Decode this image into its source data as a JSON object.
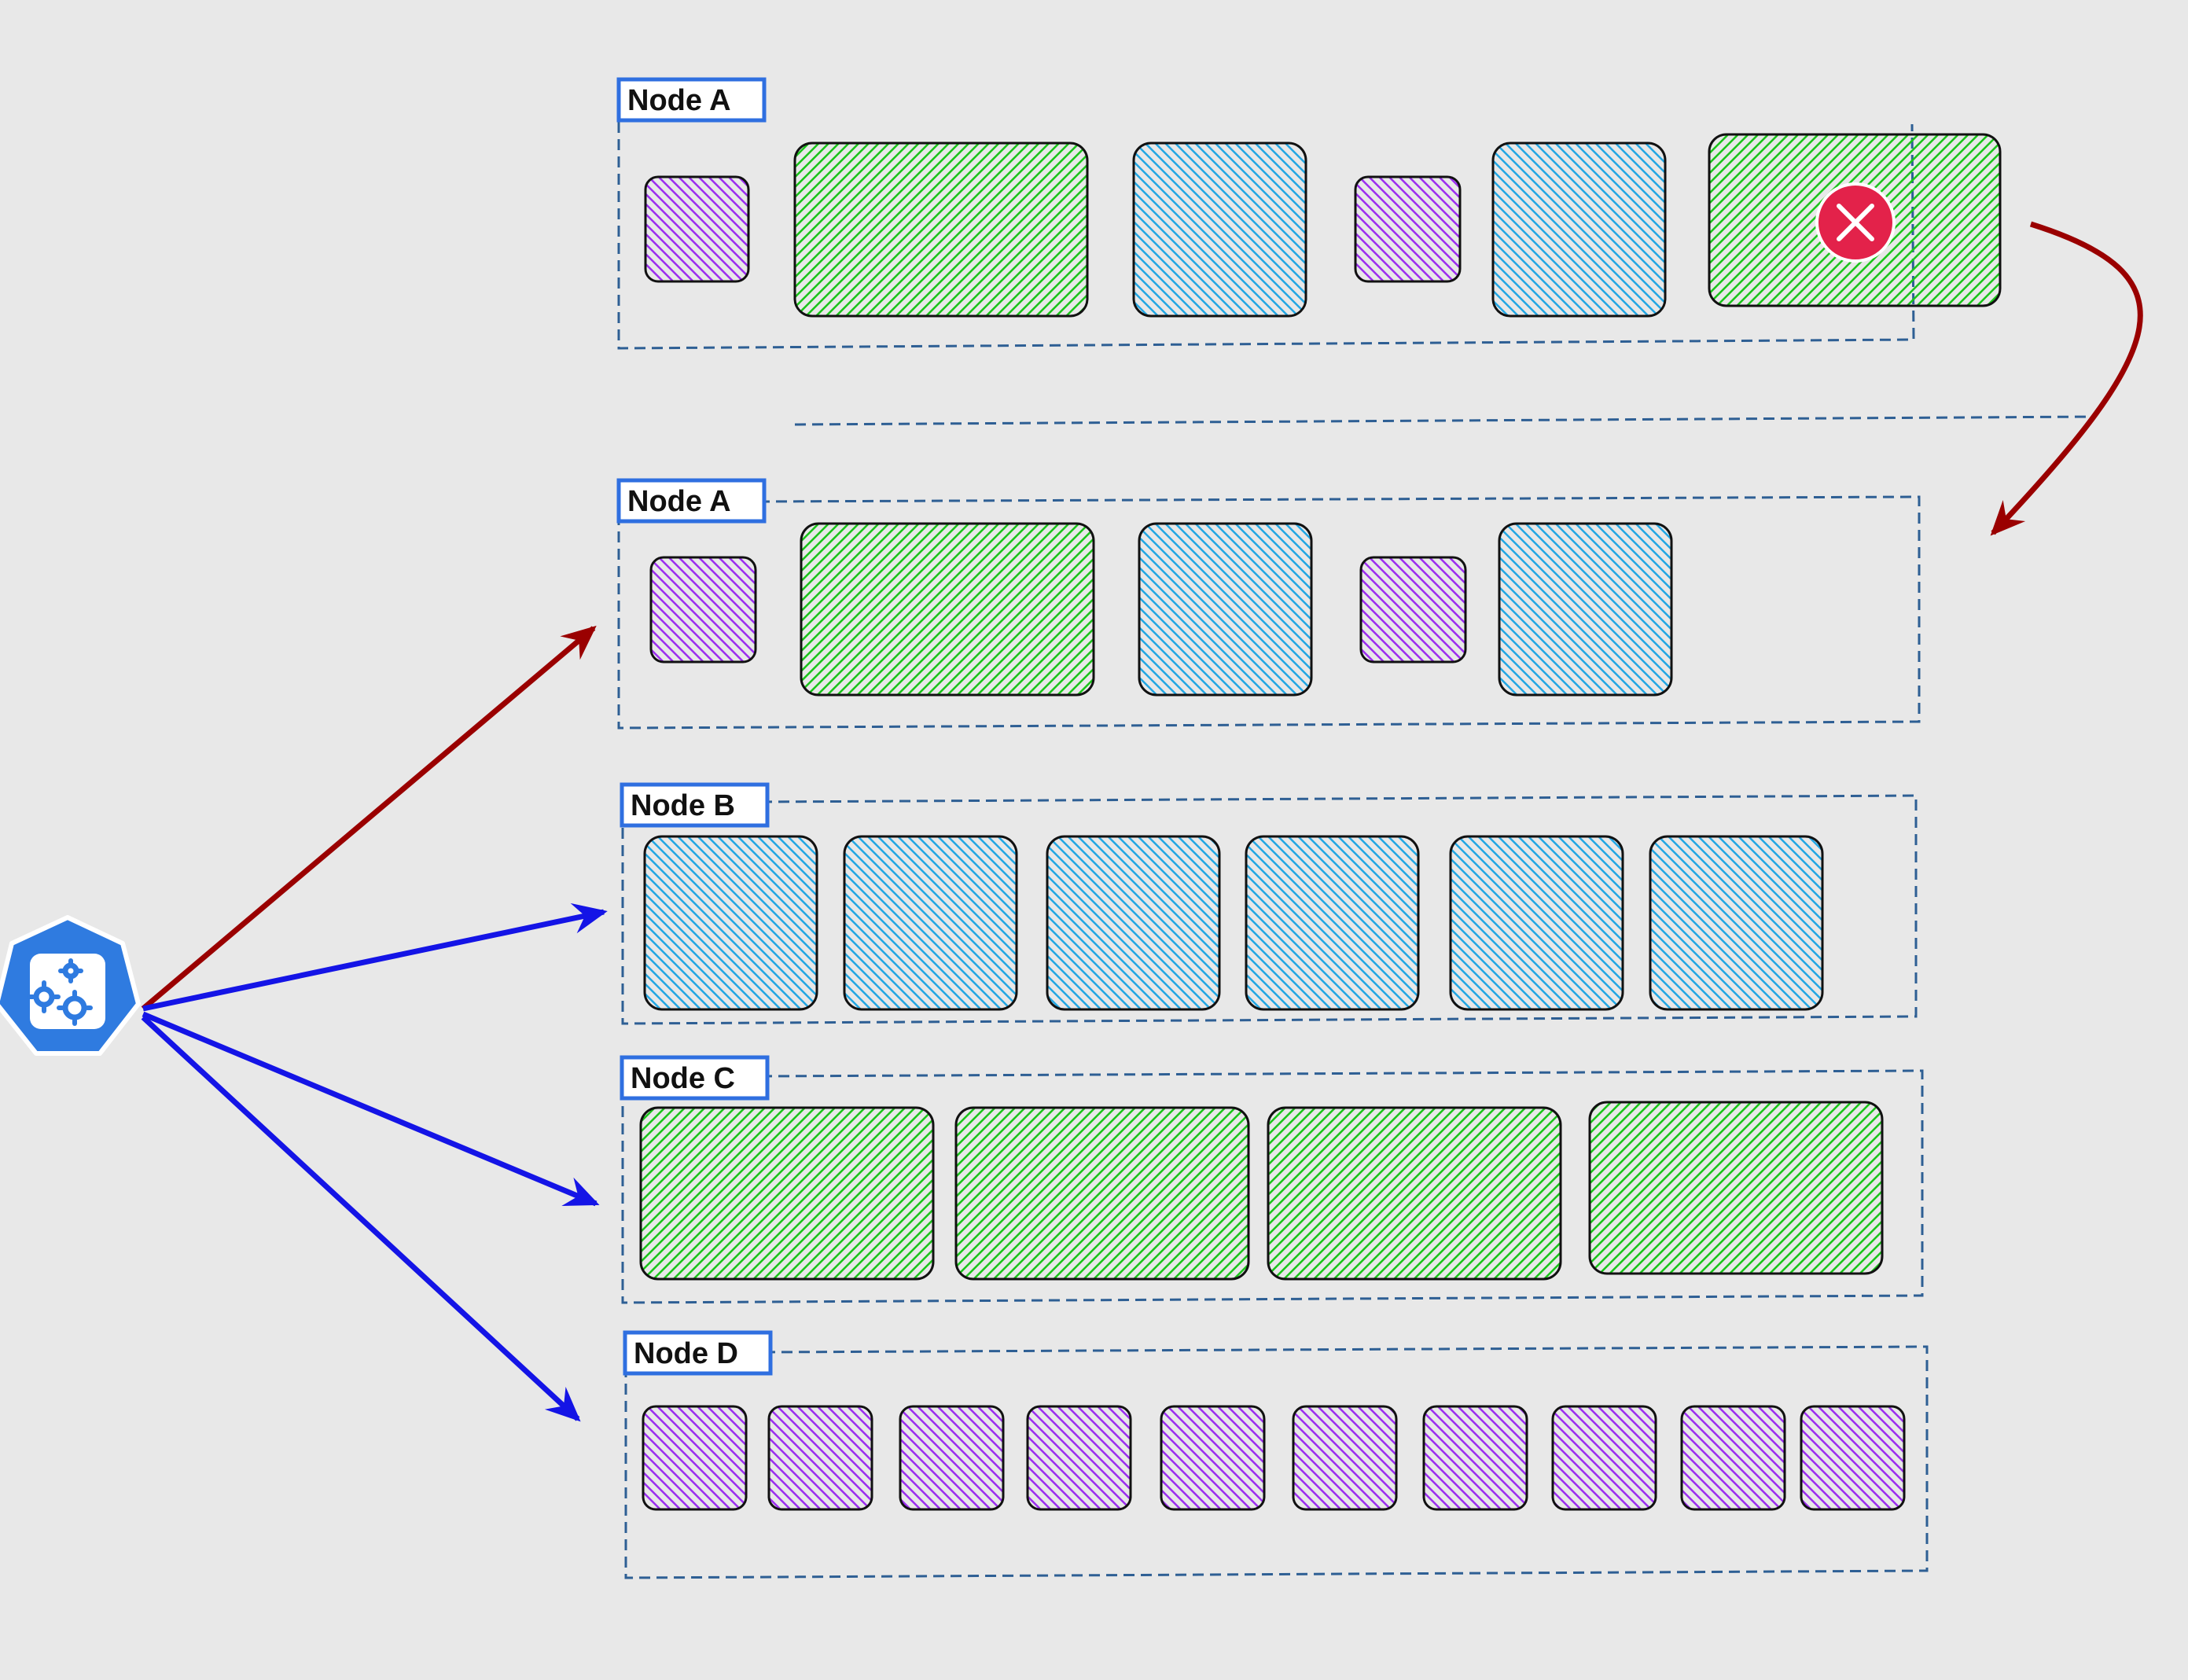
{
  "colors": {
    "background": "#e8e8e8",
    "frame_border": "#2e5f94",
    "label_border": "#2f6fe0",
    "green_pod": "#19c419",
    "blue_pod": "#22a6e3",
    "purple_pod": "#9b2df0",
    "red_arrow": "#9a0000",
    "blue_arrow": "#1414e6",
    "error_badge": "#e3224a",
    "scheduler_icon": "#2f7be0"
  },
  "scheduler": {
    "icon": "kubernetes-scheduler-gears-icon"
  },
  "before_state": {
    "node": {
      "label": "Node A",
      "pods": [
        "purple-small",
        "green-large",
        "blue-medium",
        "purple-small",
        "blue-medium",
        "green-large"
      ],
      "failed_pod_index": 5
    },
    "error_icon": "error-x-icon"
  },
  "after_state": {
    "nodes": [
      {
        "label": "Node A",
        "pods": [
          "purple-small",
          "green-large",
          "blue-medium",
          "purple-small",
          "blue-medium"
        ],
        "arrow": "red"
      },
      {
        "label": "Node B",
        "pods": [
          "blue-medium",
          "blue-medium",
          "blue-medium",
          "blue-medium",
          "blue-medium",
          "blue-medium"
        ],
        "arrow": "blue"
      },
      {
        "label": "Node C",
        "pods": [
          "green-large",
          "green-large",
          "green-large",
          "green-large"
        ],
        "arrow": "blue"
      },
      {
        "label": "Node D",
        "pods": [
          "purple-small",
          "purple-small",
          "purple-small",
          "purple-small",
          "purple-small",
          "purple-small",
          "purple-small",
          "purple-small",
          "purple-small",
          "purple-small"
        ],
        "arrow": "blue"
      }
    ]
  }
}
